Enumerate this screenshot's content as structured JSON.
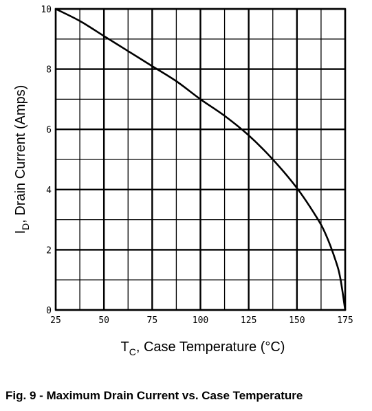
{
  "chart_data": {
    "type": "line",
    "xlabel_main": "T",
    "xlabel_sub": "C",
    "xlabel_rest": ", Case Temperature (°C)",
    "ylabel_main": "I",
    "ylabel_sub": "D",
    "ylabel_rest": ", Drain Current (Amps)",
    "xlim": [
      25,
      175
    ],
    "ylim": [
      0,
      10
    ],
    "x_ticks": [
      25,
      50,
      75,
      100,
      125,
      150,
      175
    ],
    "y_ticks": [
      0,
      2,
      4,
      6,
      8,
      10
    ],
    "x_minor_step": 12.5,
    "y_minor_step": 1,
    "grid": true,
    "series": [
      {
        "x": [
          25,
          37.5,
          50,
          62.5,
          75,
          87.5,
          100,
          112.5,
          125,
          137.5,
          150,
          160,
          165,
          170,
          172.5,
          175
        ],
        "y": [
          10,
          9.6,
          9.1,
          8.6,
          8.1,
          7.6,
          7.0,
          6.45,
          5.8,
          5.0,
          4.05,
          3.1,
          2.5,
          1.65,
          1.05,
          0
        ]
      }
    ]
  },
  "caption": "Fig. 9 - Maximum Drain Current vs. Case Temperature"
}
